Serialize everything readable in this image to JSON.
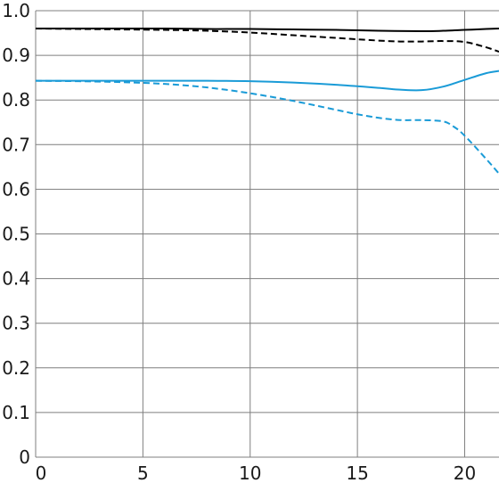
{
  "chart_data": {
    "type": "line",
    "title": "",
    "xlabel": "",
    "ylabel": "",
    "xlim": [
      0,
      21.6
    ],
    "ylim": [
      0,
      1.0
    ],
    "x_ticks": [
      0,
      5,
      10,
      15,
      20
    ],
    "y_ticks": [
      0,
      0.1,
      0.2,
      0.3,
      0.4,
      0.5,
      0.6,
      0.7,
      0.8,
      0.9,
      1.0
    ],
    "x_tick_labels": [
      "0",
      "5",
      "10",
      "15",
      "20"
    ],
    "y_tick_labels": [
      "0",
      "0.1",
      "0.2",
      "0.3",
      "0.4",
      "0.5",
      "0.6",
      "0.7",
      "0.8",
      "0.9",
      "1.0"
    ],
    "grid": true,
    "legend": "none",
    "series": [
      {
        "color": "#000000",
        "style": "solid",
        "x": [
          0,
          2,
          4,
          6,
          8,
          10,
          12,
          14,
          16,
          18,
          19,
          20,
          21,
          21.6
        ],
        "y": [
          0.96,
          0.96,
          0.96,
          0.96,
          0.959,
          0.959,
          0.958,
          0.957,
          0.955,
          0.954,
          0.955,
          0.957,
          0.959,
          0.96
        ]
      },
      {
        "color": "#000000",
        "style": "dashed",
        "x": [
          0,
          2,
          4,
          6,
          8,
          10,
          12,
          14,
          16,
          17,
          18,
          19,
          20,
          21,
          21.6
        ],
        "y": [
          0.96,
          0.959,
          0.958,
          0.957,
          0.955,
          0.951,
          0.945,
          0.939,
          0.933,
          0.931,
          0.931,
          0.932,
          0.93,
          0.918,
          0.908
        ]
      },
      {
        "color": "#1a9bd7",
        "style": "solid",
        "x": [
          0,
          2,
          4,
          6,
          8,
          10,
          12,
          14,
          16,
          17,
          18,
          19,
          20,
          21,
          21.6
        ],
        "y": [
          0.843,
          0.843,
          0.843,
          0.843,
          0.843,
          0.842,
          0.839,
          0.834,
          0.827,
          0.823,
          0.822,
          0.83,
          0.845,
          0.86,
          0.865
        ]
      },
      {
        "color": "#1a9bd7",
        "style": "dashed",
        "x": [
          0,
          2,
          4,
          6,
          8,
          10,
          12,
          14,
          15,
          16,
          17,
          18,
          19,
          19.5,
          20,
          21,
          21.6
        ],
        "y": [
          0.843,
          0.842,
          0.84,
          0.836,
          0.828,
          0.815,
          0.798,
          0.778,
          0.768,
          0.76,
          0.755,
          0.755,
          0.752,
          0.74,
          0.72,
          0.668,
          0.635
        ]
      }
    ]
  }
}
